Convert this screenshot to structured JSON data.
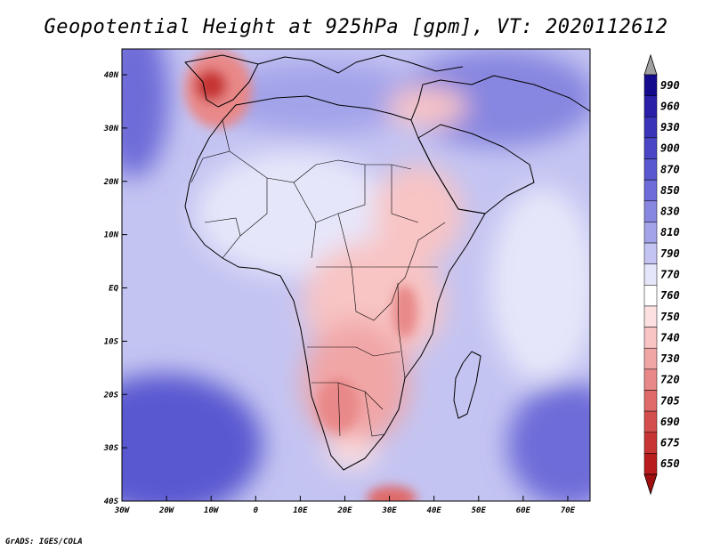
{
  "title": "Geopotential Height at 925hPa [gpm], VT: 2020112612",
  "credit": "GrADS: IGES/COLA",
  "lon_labels": [
    "30W",
    "20W",
    "10W",
    "0",
    "10E",
    "20E",
    "30E",
    "40E",
    "50E",
    "60E",
    "70E"
  ],
  "lat_labels": [
    "40N",
    "30N",
    "20N",
    "10N",
    "EQ",
    "10S",
    "20S",
    "30S",
    "40S"
  ],
  "colorbar": {
    "labels": [
      "990",
      "960",
      "930",
      "900",
      "870",
      "850",
      "830",
      "810",
      "790",
      "770",
      "760",
      "750",
      "740",
      "730",
      "720",
      "705",
      "690",
      "675",
      "650"
    ],
    "colors": [
      "#140a8c",
      "#2a1fa8",
      "#3a34b8",
      "#4a46c6",
      "#5a58d0",
      "#6e6cd8",
      "#8786e0",
      "#a3a3ea",
      "#c4c4f2",
      "#e6e6fa",
      "#ffffff",
      "#fde0e0",
      "#f8c4c4",
      "#f1a6a6",
      "#e98888",
      "#df6a6a",
      "#d44e4e",
      "#c83434",
      "#b81c1c"
    ],
    "top_arrow_color": "#a0a0a0",
    "bottom_arrow_color": "#a01010"
  }
}
